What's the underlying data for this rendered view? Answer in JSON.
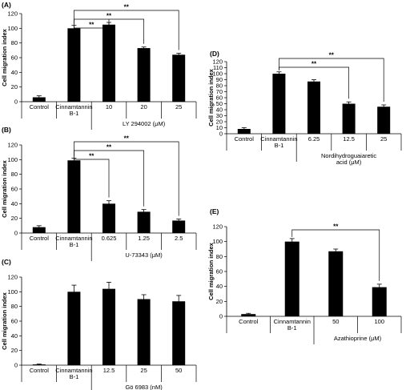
{
  "chart_data": [
    {
      "type": "bar",
      "panel": "(A)",
      "ylabel": "Cell migration index",
      "ylim": [
        0,
        120
      ],
      "yticks": [
        0,
        20,
        40,
        60,
        80,
        100,
        120
      ],
      "categories": [
        "Control",
        "Cinnamtannin\nB-1",
        "10",
        "20",
        "25"
      ],
      "values": [
        6,
        100,
        105,
        73,
        64
      ],
      "errors": [
        2,
        4,
        3,
        1.5,
        2
      ],
      "group_label": "LY 294002 (μM)",
      "group_start": 2,
      "significance": [
        {
          "from": 1,
          "to": 2,
          "label": "**"
        },
        {
          "from": 1,
          "to": 3,
          "label": "**"
        },
        {
          "from": 1,
          "to": 4,
          "label": "**"
        }
      ]
    },
    {
      "type": "bar",
      "panel": "(B)",
      "ylabel": "Cell migration index",
      "ylim": [
        0,
        120
      ],
      "yticks": [
        0,
        20,
        40,
        60,
        80,
        100,
        120
      ],
      "categories": [
        "Control",
        "Cinnamtannin\nB-1",
        "0.625",
        "1.25",
        "2.5"
      ],
      "values": [
        8,
        99,
        40,
        29,
        17
      ],
      "errors": [
        2,
        3,
        4,
        3,
        2
      ],
      "group_label": "U-73343 (μM)",
      "group_start": 2,
      "significance": [
        {
          "from": 1,
          "to": 2,
          "label": "**"
        },
        {
          "from": 1,
          "to": 3,
          "label": "**"
        },
        {
          "from": 1,
          "to": 4,
          "label": "**"
        }
      ]
    },
    {
      "type": "bar",
      "panel": "(C)",
      "ylabel": "Cell migration index",
      "ylim": [
        0,
        120
      ],
      "yticks": [
        0,
        20,
        40,
        60,
        80,
        100,
        120
      ],
      "categories": [
        "Control",
        "Cinnamtannin\nB-1",
        "12.5",
        "25",
        "50"
      ],
      "values": [
        1,
        100,
        104,
        90,
        87
      ],
      "errors": [
        0.5,
        9,
        9,
        6,
        8
      ],
      "group_label": "Gö 6983 (nM)",
      "group_start": 2,
      "significance": []
    },
    {
      "type": "bar",
      "panel": "(D)",
      "ylabel": "Cell migration index",
      "ylim": [
        0,
        120
      ],
      "yticks": [
        0,
        10,
        20,
        30,
        40,
        50,
        60,
        70,
        80,
        90,
        100,
        110,
        120
      ],
      "categories": [
        "Control",
        "Cinnamtannin\nB-1",
        "6.25",
        "12.5",
        "25"
      ],
      "values": [
        8,
        100,
        87,
        50,
        45
      ],
      "errors": [
        2,
        3,
        3,
        3,
        3
      ],
      "group_label": "Nordihydroguaiaretic\nacid (μM)",
      "group_start": 2,
      "significance": [
        {
          "from": 1,
          "to": 3,
          "label": "**"
        },
        {
          "from": 1,
          "to": 4,
          "label": "**"
        }
      ]
    },
    {
      "type": "bar",
      "panel": "(E)",
      "ylabel": "Cell migration index",
      "ylim": [
        0,
        120
      ],
      "yticks": [
        0,
        20,
        40,
        60,
        80,
        100,
        120
      ],
      "categories": [
        "Control",
        "Cinnamtannin\nB-1",
        "50",
        "100"
      ],
      "values": [
        3,
        100,
        87,
        39
      ],
      "errors": [
        1,
        4,
        3,
        4
      ],
      "group_label": "Azathioprine (μM)",
      "group_start": 2,
      "significance": [
        {
          "from": 1,
          "to": 3,
          "label": "**"
        }
      ]
    }
  ]
}
